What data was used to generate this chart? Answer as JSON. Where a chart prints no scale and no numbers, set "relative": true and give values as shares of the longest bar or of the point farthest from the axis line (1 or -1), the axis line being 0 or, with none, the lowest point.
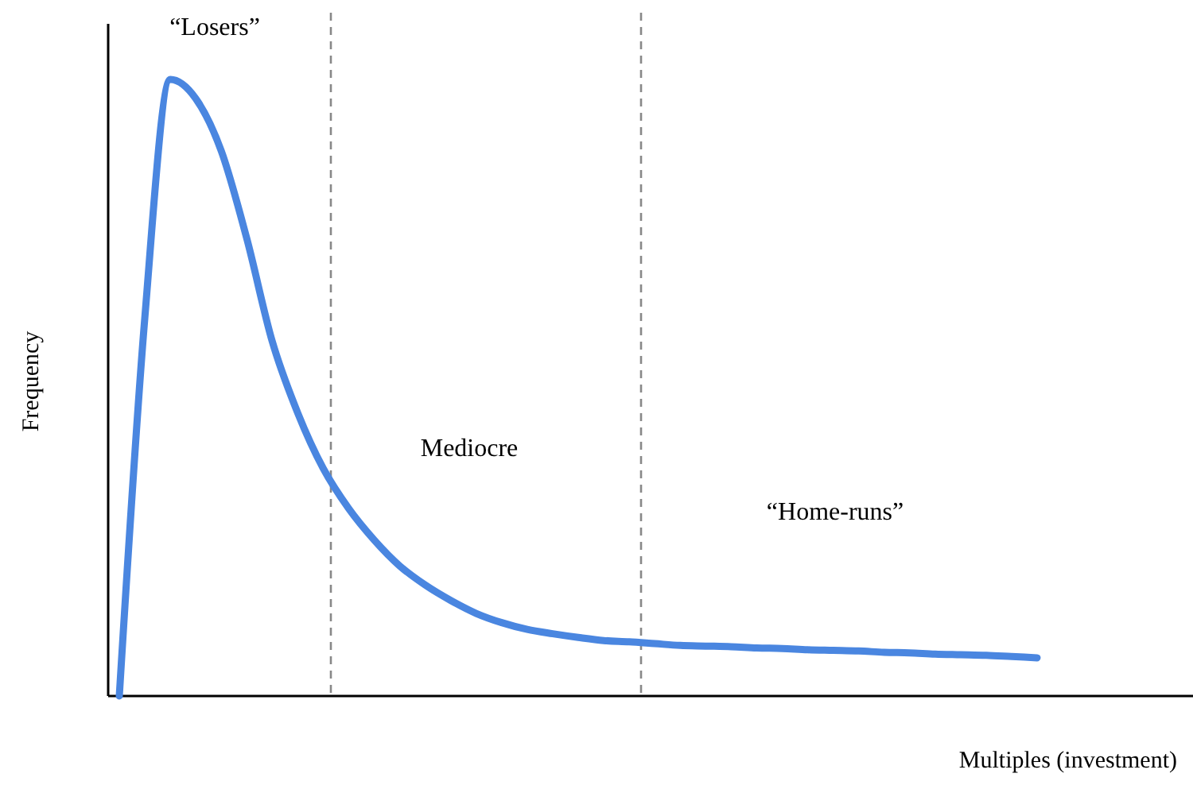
{
  "chart_data": {
    "type": "line",
    "relative": true,
    "xlabel": "Multiples (investment)",
    "ylabel": "Frequency",
    "categories": [
      null,
      null,
      null,
      null,
      null,
      null,
      null,
      null,
      null,
      null,
      null,
      null,
      null,
      null,
      null,
      null,
      null,
      null,
      null,
      null,
      null,
      null,
      null,
      null,
      null,
      null,
      null,
      null,
      null,
      null,
      null,
      null,
      null,
      null,
      null,
      null,
      null
    ],
    "series": [
      {
        "color": "#4a86e0",
        "values": [
          0,
          0.613,
          1,
          0.969,
          0.884,
          0.742,
          0.575,
          0.459,
          0.369,
          0.304,
          0.253,
          0.211,
          0.18,
          0.155,
          0.134,
          0.119,
          0.108,
          0.101,
          0.095,
          0.09,
          0.088,
          0.085,
          0.082,
          0.081,
          0.08,
          0.078,
          0.077,
          0.075,
          0.074,
          0.073,
          0.071,
          0.07,
          0.068,
          0.067,
          0.066,
          0.064,
          0.062
        ]
      }
    ],
    "annotations": [
      "“Losers”",
      "Mediocre",
      "“Home-runs”"
    ]
  }
}
